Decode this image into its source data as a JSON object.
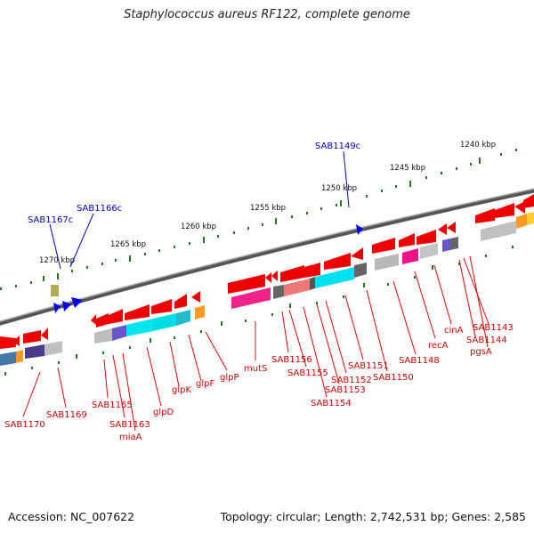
{
  "title": "Staphylococcus aureus RF122, complete genome",
  "accession": "Accession: NC_007622",
  "topology": "Topology: circular; Length: 2,742,531 bp; Genes: 2,585",
  "scale_labels": [
    "1240 kbp",
    "1245 kbp",
    "1250 kbp",
    "1255 kbp",
    "1260 kbp",
    "1265 kbp",
    "1270 kbp"
  ],
  "forward_gene_labels": [
    "SAB1167c",
    "SAB1166c",
    "SAB1149c"
  ],
  "reverse_gene_labels": [
    "SAB1170",
    "SAB1169",
    "SAB1165",
    "SAB1163",
    "miaA",
    "glpD",
    "glpK",
    "glpF",
    "glpP",
    "mutS",
    "SAB1156",
    "SAB1155",
    "SAB1154",
    "SAB1153",
    "SAB1152",
    "SAB1151",
    "SAB1150",
    "SAB1148",
    "recA",
    "cinA",
    "SAB1143",
    "SAB1144",
    "pgsA"
  ],
  "colors": {
    "reverse_label": "#cc0000",
    "forward_label": "#0000bb",
    "gene_arrow": "#ee0000",
    "tick": "#227722",
    "backbone": "#666666"
  }
}
